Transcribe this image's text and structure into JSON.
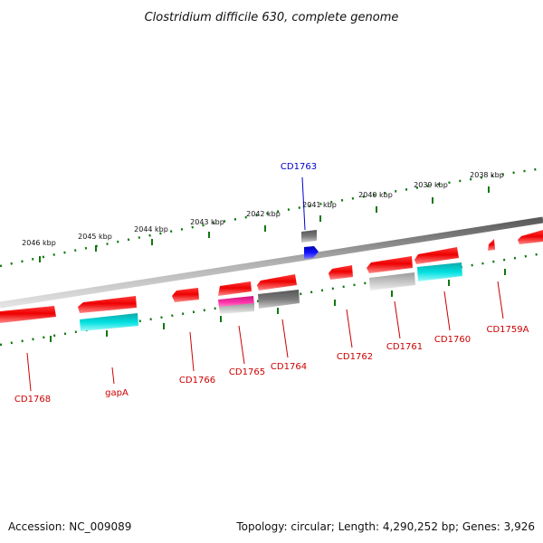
{
  "title": "Clostridium difficile 630, complete genome",
  "footer": {
    "accession": "Accession: NC_009089",
    "summary": "Topology: circular; Length: 4,290,252 bp; Genes: 3,926"
  },
  "colors": {
    "gene": "#ff0000",
    "rna": "#00dddd",
    "pseudo_gray": "#777777",
    "light_gray": "#bbbbbb",
    "magenta": "#ee2299",
    "blue": "#0000ee",
    "tick": "#117711",
    "backbone": "#8a8a8a"
  },
  "scale_labels": [
    "2046 kbp",
    "2045 kbp",
    "2044 kbp",
    "2043 kbp",
    "2042 kbp",
    "2041 kbp",
    "2040 kbp",
    "2039 kbp",
    "2038 kbp"
  ],
  "gene_labels": [
    {
      "name": "CD1768",
      "color": "#cc0000"
    },
    {
      "name": "gapA",
      "color": "#cc0000"
    },
    {
      "name": "CD1766",
      "color": "#cc0000"
    },
    {
      "name": "CD1765",
      "color": "#cc0000"
    },
    {
      "name": "CD1764",
      "color": "#cc0000"
    },
    {
      "name": "CD1763",
      "color": "#0000cc"
    },
    {
      "name": "CD1762",
      "color": "#cc0000"
    },
    {
      "name": "CD1761",
      "color": "#cc0000"
    },
    {
      "name": "CD1760",
      "color": "#cc0000"
    },
    {
      "name": "CD1759A",
      "color": "#cc0000"
    }
  ]
}
